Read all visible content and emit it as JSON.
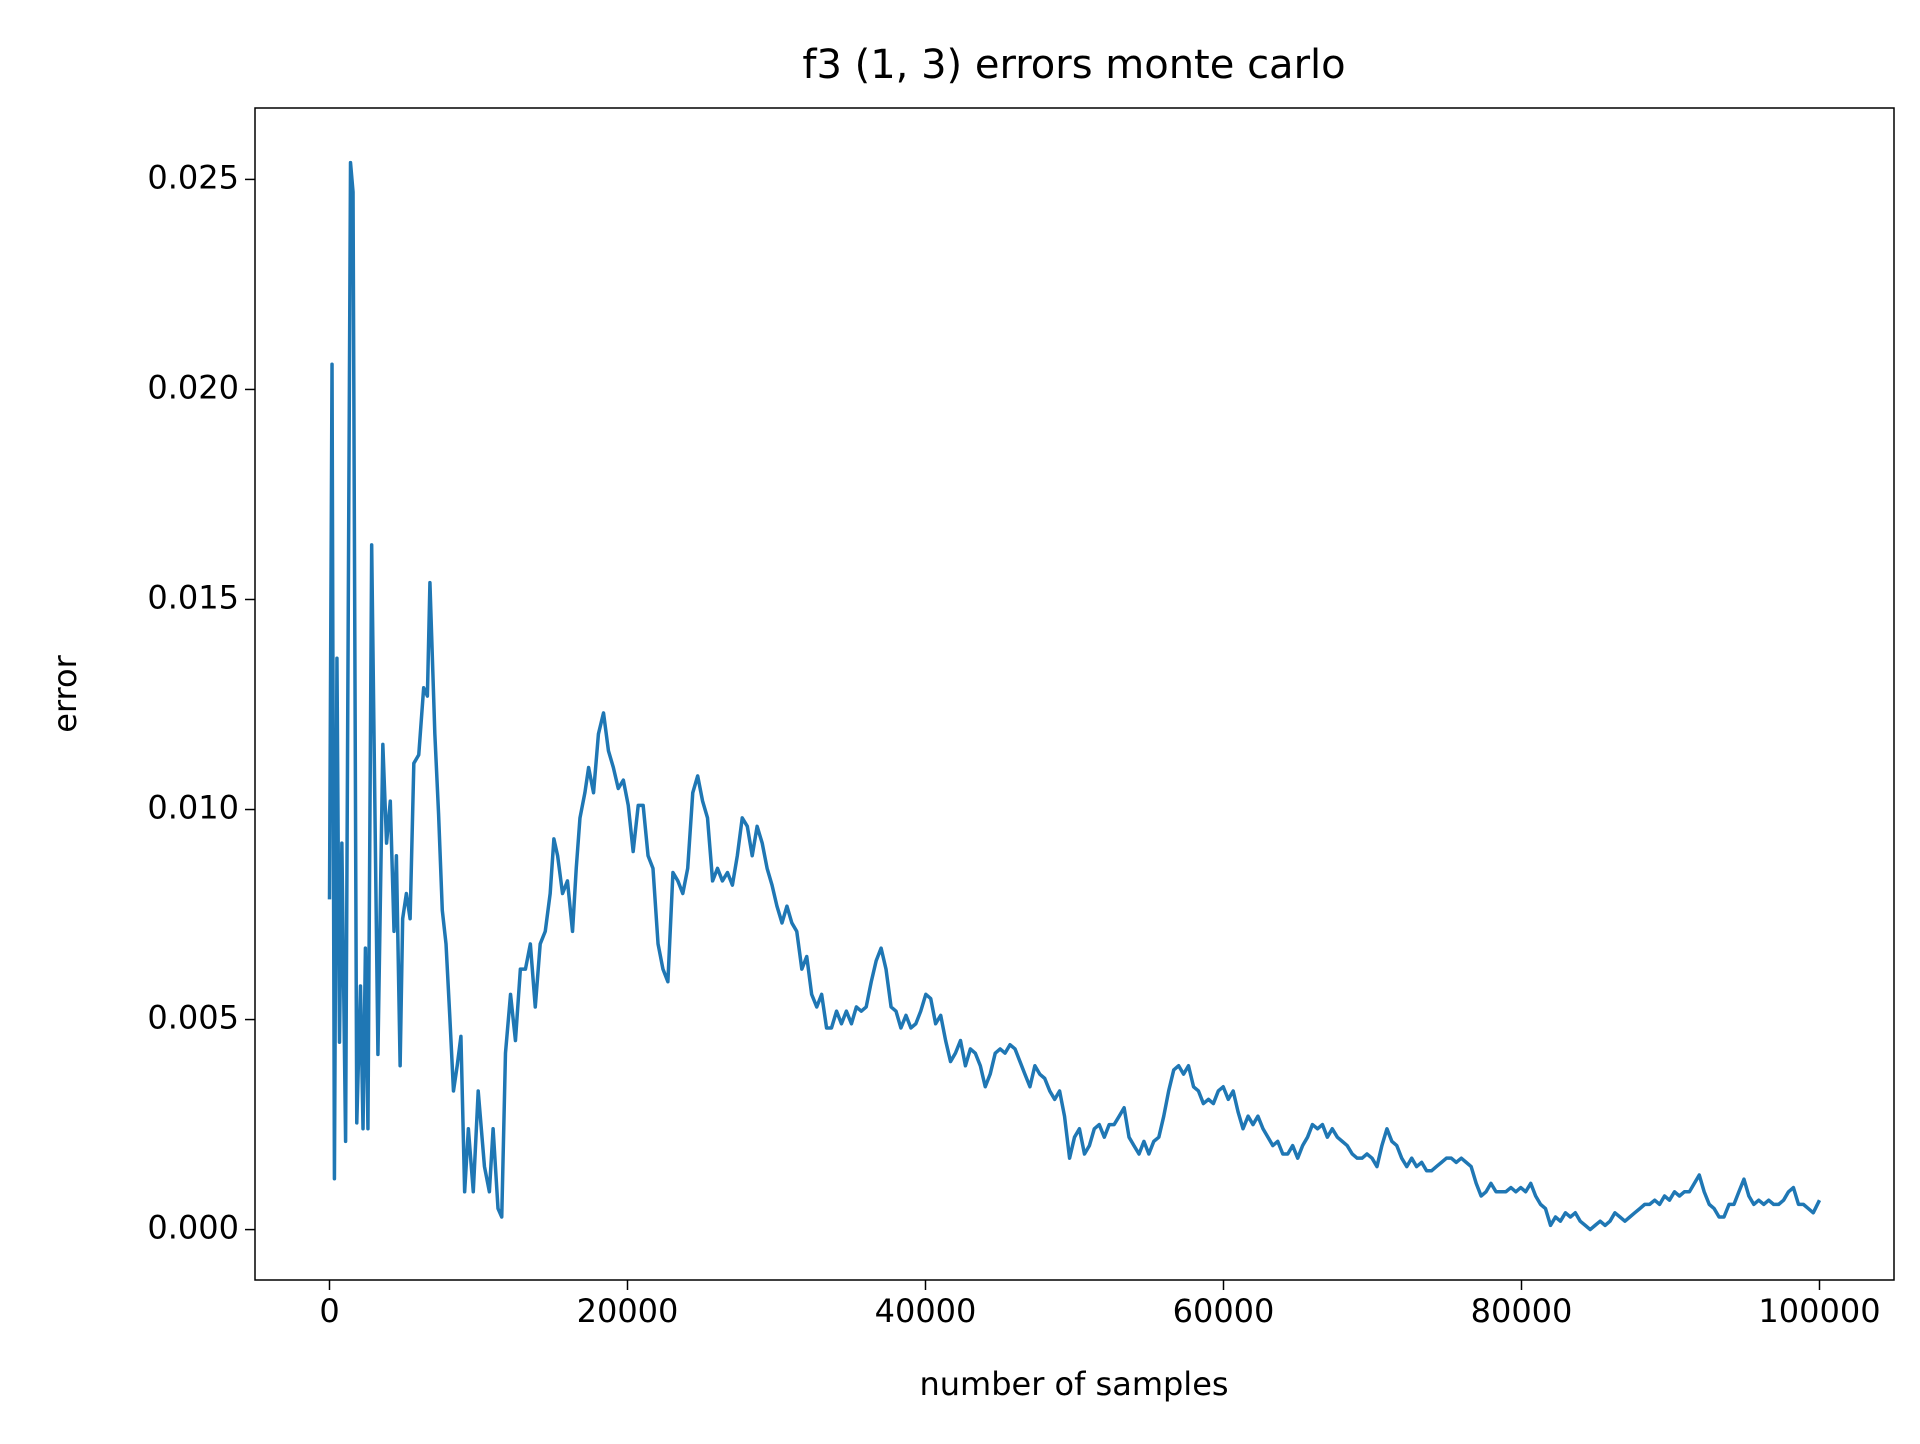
{
  "chart_data": {
    "type": "line",
    "title": "f3 (1, 3) errors monte carlo",
    "xlabel": "number of samples",
    "ylabel": "error",
    "xlim": [
      -5000,
      105000
    ],
    "ylim": [
      -0.0012,
      0.0267
    ],
    "xticks": [
      0,
      20000,
      40000,
      60000,
      80000,
      100000
    ],
    "yticks": [
      {
        "value": 0,
        "label": "0.000"
      },
      {
        "value": 0.005,
        "label": "0.005"
      },
      {
        "value": 0.01,
        "label": "0.010"
      },
      {
        "value": 0.015,
        "label": "0.015"
      },
      {
        "value": 0.02,
        "label": "0.020"
      },
      {
        "value": 0.025,
        "label": "0.025"
      }
    ],
    "grid": false,
    "series": [
      {
        "color": "#1f77b4",
        "x": [
          0,
          170,
          330,
          500,
          670,
          830,
          1080,
          1410,
          1580,
          1830,
          2080,
          2250,
          2410,
          2580,
          2830,
          3250,
          3580,
          3830,
          4080,
          4330,
          4490,
          4740,
          4910,
          5160,
          5410,
          5660,
          5990,
          6320,
          6570,
          6740,
          7070,
          7320,
          7570,
          7820,
          8070,
          8320,
          8570,
          8820,
          9070,
          9320,
          9650,
          9980,
          10400,
          10730,
          10980,
          11310,
          11560,
          11810,
          12150,
          12480,
          12810,
          13150,
          13480,
          13810,
          14140,
          14480,
          14810,
          15060,
          15310,
          15640,
          15970,
          16310,
          16560,
          16810,
          17140,
          17390,
          17720,
          18050,
          18390,
          18720,
          19050,
          19380,
          19720,
          20050,
          20380,
          20720,
          21050,
          21380,
          21710,
          22050,
          22380,
          22710,
          23050,
          23380,
          23710,
          24040,
          24380,
          24710,
          25040,
          25370,
          25710,
          26040,
          26370,
          26710,
          27040,
          27370,
          27700,
          28040,
          28370,
          28700,
          29040,
          29370,
          29700,
          30030,
          30370,
          30700,
          31030,
          31360,
          31700,
          32030,
          32360,
          32700,
          33030,
          33360,
          33690,
          34030,
          34360,
          34690,
          35030,
          35360,
          35690,
          36020,
          36360,
          36690,
          37020,
          37350,
          37690,
          38020,
          38350,
          38690,
          39020,
          39350,
          39680,
          40020,
          40350,
          40680,
          41020,
          41350,
          41680,
          42010,
          42350,
          42680,
          43010,
          43340,
          43680,
          44010,
          44340,
          44680,
          45010,
          45340,
          45670,
          46010,
          46340,
          46670,
          47010,
          47340,
          47670,
          48000,
          48340,
          48670,
          49000,
          49330,
          49670,
          50000,
          50330,
          50670,
          51000,
          51330,
          51660,
          52000,
          52330,
          52660,
          53000,
          53330,
          53660,
          53990,
          54330,
          54660,
          54990,
          55320,
          55660,
          55990,
          56320,
          56660,
          56990,
          57320,
          57650,
          57990,
          58320,
          58650,
          58990,
          59320,
          59650,
          59980,
          60320,
          60650,
          60980,
          61310,
          61650,
          61980,
          62310,
          62650,
          62980,
          63310,
          63640,
          63980,
          64310,
          64640,
          64980,
          65310,
          65640,
          65970,
          66310,
          66640,
          66970,
          67300,
          67640,
          67970,
          68300,
          68640,
          68970,
          69300,
          69630,
          69970,
          70300,
          70630,
          70970,
          71300,
          71630,
          71960,
          72300,
          72630,
          72960,
          73300,
          73630,
          73960,
          74290,
          74630,
          74960,
          75290,
          75620,
          75960,
          76290,
          76620,
          76960,
          77290,
          77620,
          77950,
          78290,
          78620,
          78950,
          79290,
          79620,
          79950,
          80280,
          80620,
          80950,
          81280,
          81610,
          81950,
          82280,
          82610,
          82950,
          83280,
          83610,
          83940,
          84280,
          84610,
          84940,
          85280,
          85610,
          85940,
          86270,
          86610,
          86940,
          87270,
          87600,
          87940,
          88270,
          88600,
          88940,
          89270,
          89600,
          89930,
          90270,
          90600,
          90930,
          91270,
          91600,
          91930,
          92260,
          92600,
          92930,
          93260,
          93590,
          93930,
          94260,
          94590,
          94930,
          95260,
          95590,
          95920,
          96260,
          96590,
          96920,
          97260,
          97590,
          97920,
          98250,
          98590,
          98920,
          99250,
          99580,
          100000
        ],
        "values": [
          0.00786,
          0.0206,
          0.00121,
          0.0136,
          0.00446,
          0.0092,
          0.0021,
          0.0254,
          0.0247,
          0.00254,
          0.0058,
          0.0024,
          0.0067,
          0.0024,
          0.0163,
          0.00417,
          0.01155,
          0.0092,
          0.0102,
          0.0071,
          0.0089,
          0.0039,
          0.0074,
          0.008,
          0.0074,
          0.0111,
          0.0113,
          0.0129,
          0.0127,
          0.0154,
          0.0118,
          0.0099,
          0.0076,
          0.0068,
          0.0051,
          0.0033,
          0.0039,
          0.0046,
          0.0009,
          0.0024,
          0.0009,
          0.0033,
          0.0015,
          0.0009,
          0.0024,
          0.0005,
          0.0003,
          0.0042,
          0.0056,
          0.0045,
          0.0062,
          0.0062,
          0.0068,
          0.0053,
          0.0068,
          0.0071,
          0.008,
          0.0093,
          0.0089,
          0.008,
          0.0083,
          0.0071,
          0.0086,
          0.0098,
          0.0104,
          0.011,
          0.0104,
          0.0118,
          0.0123,
          0.0114,
          0.011,
          0.0105,
          0.0107,
          0.0101,
          0.009,
          0.0101,
          0.0101,
          0.0089,
          0.0086,
          0.0068,
          0.0062,
          0.0059,
          0.0085,
          0.0083,
          0.008,
          0.0086,
          0.0104,
          0.0108,
          0.0102,
          0.0098,
          0.0083,
          0.0086,
          0.0083,
          0.0085,
          0.0082,
          0.0089,
          0.0098,
          0.0096,
          0.0089,
          0.0096,
          0.0092,
          0.0086,
          0.0082,
          0.0077,
          0.0073,
          0.0077,
          0.0073,
          0.0071,
          0.0062,
          0.0065,
          0.0056,
          0.0053,
          0.0056,
          0.0048,
          0.0048,
          0.0052,
          0.0049,
          0.0052,
          0.0049,
          0.0053,
          0.0052,
          0.0053,
          0.0059,
          0.0064,
          0.0067,
          0.0062,
          0.0053,
          0.0052,
          0.0048,
          0.0051,
          0.0048,
          0.0049,
          0.0052,
          0.0056,
          0.0055,
          0.0049,
          0.0051,
          0.0045,
          0.004,
          0.0042,
          0.0045,
          0.0039,
          0.0043,
          0.0042,
          0.0039,
          0.0034,
          0.0037,
          0.0042,
          0.0043,
          0.0042,
          0.0044,
          0.0043,
          0.004,
          0.0037,
          0.0034,
          0.0039,
          0.0037,
          0.0036,
          0.0033,
          0.0031,
          0.0033,
          0.0027,
          0.0017,
          0.0022,
          0.0024,
          0.0018,
          0.002,
          0.0024,
          0.0025,
          0.0022,
          0.0025,
          0.0025,
          0.0027,
          0.0029,
          0.0022,
          0.002,
          0.0018,
          0.0021,
          0.0018,
          0.0021,
          0.0022,
          0.0027,
          0.0033,
          0.0038,
          0.0039,
          0.0037,
          0.0039,
          0.0034,
          0.0033,
          0.003,
          0.0031,
          0.003,
          0.0033,
          0.0034,
          0.0031,
          0.0033,
          0.0028,
          0.0024,
          0.0027,
          0.0025,
          0.0027,
          0.0024,
          0.0022,
          0.002,
          0.0021,
          0.0018,
          0.0018,
          0.002,
          0.0017,
          0.002,
          0.0022,
          0.0025,
          0.0024,
          0.0025,
          0.0022,
          0.0024,
          0.0022,
          0.0021,
          0.002,
          0.0018,
          0.0017,
          0.0017,
          0.0018,
          0.0017,
          0.0015,
          0.002,
          0.0024,
          0.0021,
          0.002,
          0.0017,
          0.0015,
          0.0017,
          0.0015,
          0.0016,
          0.0014,
          0.0014,
          0.0015,
          0.0016,
          0.0017,
          0.0017,
          0.0016,
          0.0017,
          0.0016,
          0.0015,
          0.0011,
          0.0008,
          0.0009,
          0.0011,
          0.0009,
          0.0009,
          0.0009,
          0.001,
          0.0009,
          0.001,
          0.0009,
          0.0011,
          0.0008,
          0.0006,
          0.0005,
          0.0001,
          0.0003,
          0.0002,
          0.0004,
          0.0003,
          0.0004,
          0.0002,
          0.0001,
          0.0,
          0.0001,
          0.0002,
          0.0001,
          0.0002,
          0.0004,
          0.0003,
          0.0002,
          0.0003,
          0.0004,
          0.0005,
          0.0006,
          0.0006,
          0.0007,
          0.0006,
          0.0008,
          0.0007,
          0.0009,
          0.0008,
          0.0009,
          0.0009,
          0.0011,
          0.0013,
          0.0009,
          0.0006,
          0.0005,
          0.0003,
          0.0003,
          0.0006,
          0.0006,
          0.0009,
          0.0012,
          0.0008,
          0.0006,
          0.0007,
          0.0006,
          0.0007,
          0.0006,
          0.0006,
          0.0007,
          0.0009,
          0.001,
          0.0006,
          0.0006,
          0.0005,
          0.0004,
          0.0007
        ]
      }
    ]
  }
}
